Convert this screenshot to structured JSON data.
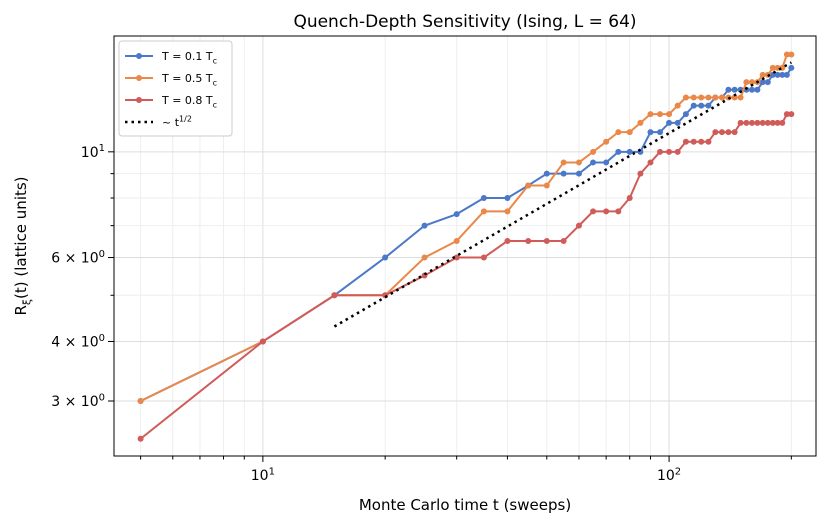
{
  "chart_data": {
    "type": "line",
    "title": "Quench-Depth Sensitivity (Ising, L = 64)",
    "xlabel": "Monte Carlo time t (sweeps)",
    "ylabel": "R_ξ(t) (lattice units)",
    "xscale": "log",
    "yscale": "log",
    "xlim": [
      4.3,
      230
    ],
    "ylim": [
      2.3,
      17.5
    ],
    "grid": true,
    "legend_position": "upper-left",
    "x_tick_labels": [
      {
        "value": 10,
        "label": "10^1"
      },
      {
        "value": 100,
        "label": "10^2"
      }
    ],
    "y_tick_labels": [
      {
        "value": 3,
        "label": "3 × 10^0"
      },
      {
        "value": 4,
        "label": "4 × 10^0"
      },
      {
        "value": 6,
        "label": "6 × 10^0"
      },
      {
        "value": 10,
        "label": "10^1"
      }
    ],
    "series": [
      {
        "name": "T = 0.1 T_c",
        "color": "#4c78c8",
        "marker": true,
        "x": [
          5,
          10,
          15,
          20,
          25,
          30,
          35,
          40,
          45,
          50,
          55,
          60,
          65,
          70,
          75,
          80,
          85,
          90,
          95,
          100,
          105,
          110,
          115,
          120,
          125,
          130,
          135,
          140,
          145,
          150,
          155,
          160,
          165,
          170,
          175,
          180,
          185,
          190,
          195,
          200
        ],
        "y": [
          3.0,
          4.0,
          5.0,
          6.0,
          7.0,
          7.4,
          8.0,
          8.0,
          8.5,
          9.0,
          9.0,
          9.0,
          9.5,
          9.5,
          10.0,
          10.0,
          10.0,
          11.0,
          11.0,
          11.5,
          11.5,
          12.0,
          12.5,
          12.5,
          12.5,
          13.0,
          13.0,
          13.5,
          13.5,
          13.5,
          13.5,
          13.5,
          13.5,
          14.0,
          14.0,
          14.5,
          14.5,
          14.5,
          14.5,
          15.0
        ]
      },
      {
        "name": "T = 0.5 T_c",
        "color": "#ea8849",
        "marker": true,
        "x": [
          5,
          10,
          15,
          20,
          25,
          30,
          35,
          40,
          45,
          50,
          55,
          60,
          65,
          70,
          75,
          80,
          85,
          90,
          95,
          100,
          105,
          110,
          115,
          120,
          125,
          130,
          135,
          140,
          145,
          150,
          155,
          160,
          165,
          170,
          175,
          180,
          185,
          190,
          195,
          200
        ],
        "y": [
          3.0,
          4.0,
          5.0,
          5.0,
          6.0,
          6.5,
          7.5,
          7.5,
          8.5,
          8.5,
          9.5,
          9.5,
          10.0,
          10.5,
          11.0,
          11.0,
          11.5,
          12.0,
          12.0,
          12.0,
          12.5,
          13.0,
          13.0,
          13.0,
          13.0,
          13.0,
          13.0,
          13.0,
          13.0,
          13.0,
          14.0,
          14.0,
          14.0,
          14.5,
          14.5,
          15.0,
          15.0,
          15.0,
          16.0,
          16.0
        ]
      },
      {
        "name": "T = 0.8 T_c",
        "color": "#d05c5a",
        "marker": true,
        "x": [
          5,
          10,
          15,
          20,
          25,
          30,
          35,
          40,
          45,
          50,
          55,
          60,
          65,
          70,
          75,
          80,
          85,
          90,
          95,
          100,
          105,
          110,
          115,
          120,
          125,
          130,
          135,
          140,
          145,
          150,
          155,
          160,
          165,
          170,
          175,
          180,
          185,
          190,
          195,
          200
        ],
        "y": [
          2.5,
          4.0,
          5.0,
          5.0,
          5.5,
          6.0,
          6.0,
          6.5,
          6.5,
          6.5,
          6.5,
          7.0,
          7.5,
          7.5,
          7.5,
          8.0,
          9.0,
          9.5,
          10.0,
          10.0,
          10.0,
          10.5,
          10.5,
          10.5,
          10.5,
          11.0,
          11.0,
          11.0,
          11.0,
          11.5,
          11.5,
          11.5,
          11.5,
          11.5,
          11.5,
          11.5,
          11.5,
          11.5,
          12.0,
          12.0
        ]
      },
      {
        "name": "~ t^(1/2)",
        "color": "#000000",
        "marker": false,
        "dashed": true,
        "x": [
          15,
          200
        ],
        "y": [
          4.3,
          15.4
        ]
      }
    ]
  }
}
